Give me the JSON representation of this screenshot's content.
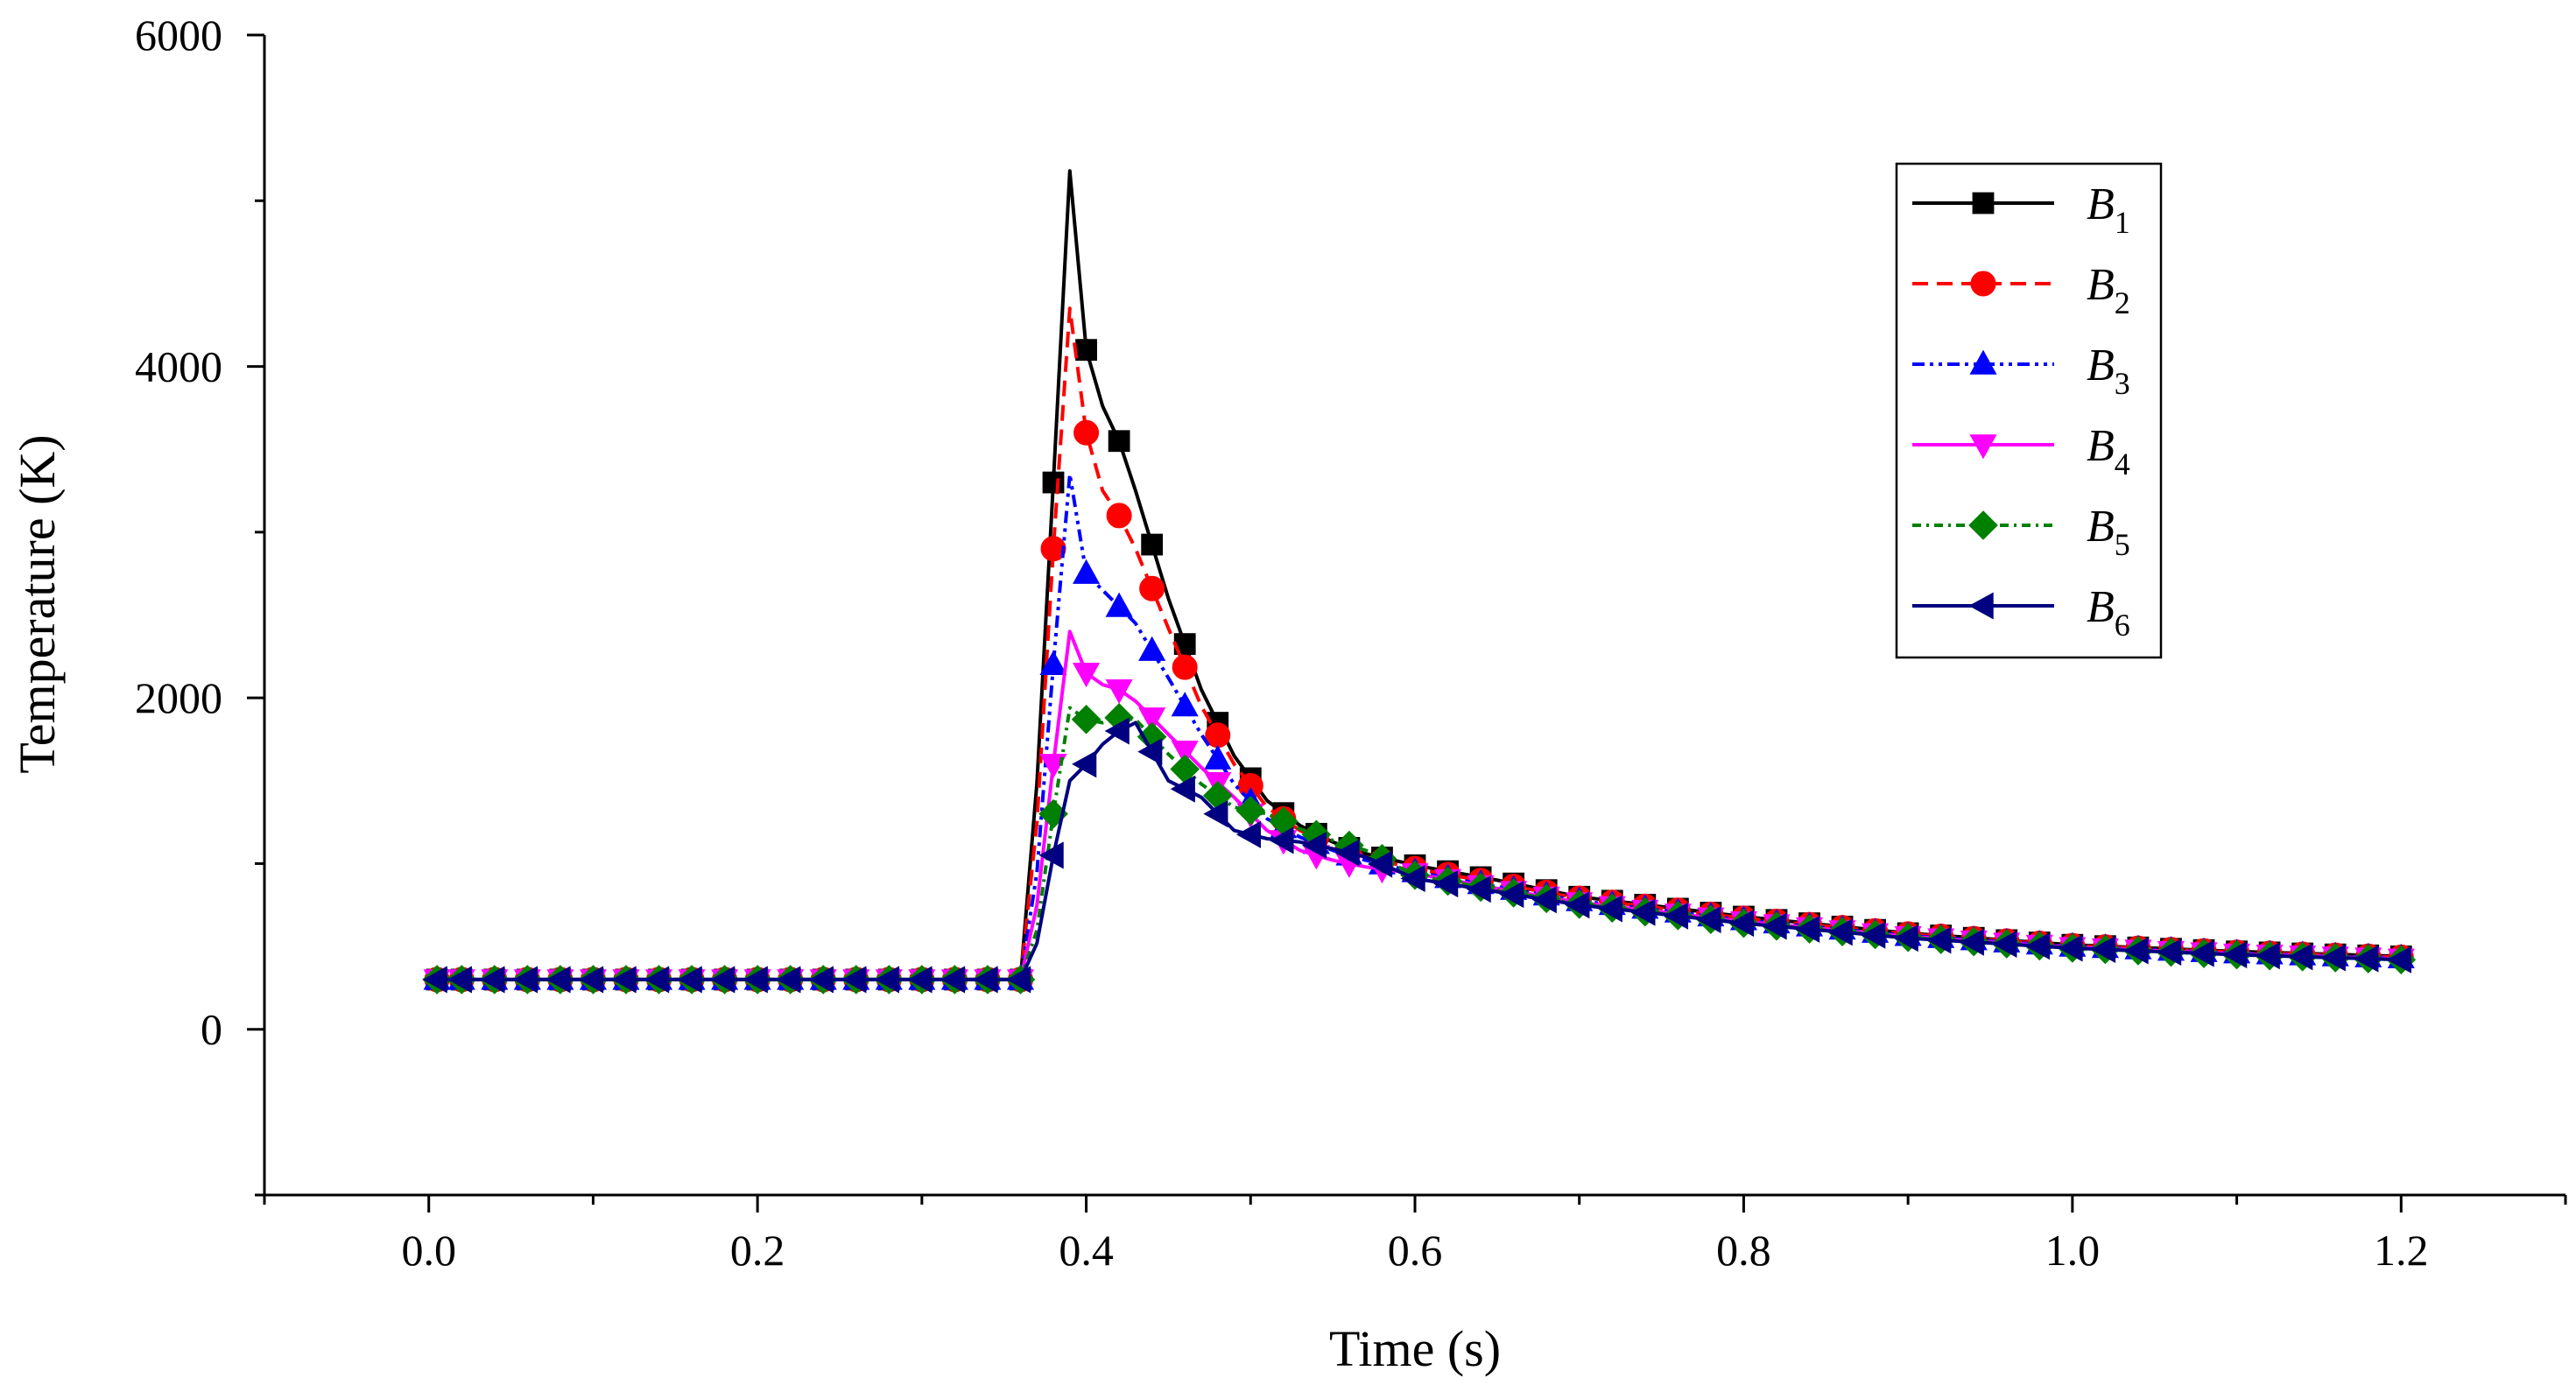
{
  "chart_data": {
    "type": "line",
    "title": "",
    "xlabel": "Time (s)",
    "ylabel": "Temperature (K)",
    "xlim": [
      -0.1,
      1.3
    ],
    "ylim": [
      -1000,
      6000
    ],
    "xticks": [
      "0.0",
      "0.2",
      "0.4",
      "0.6",
      "0.8",
      "1.0",
      "1.2"
    ],
    "yticks": [
      "0",
      "2000",
      "4000",
      "6000"
    ],
    "legend_position": "top-right",
    "series": [
      {
        "name": "B1",
        "base": "B",
        "sub": "1",
        "color": "#000000",
        "dash": "none",
        "marker": "square",
        "points": [
          [
            0.0,
            300
          ],
          [
            0.36,
            300
          ],
          [
            0.37,
            1490
          ],
          [
            0.38,
            3300
          ],
          [
            0.39,
            5180
          ],
          [
            0.4,
            4100
          ],
          [
            0.41,
            3760
          ],
          [
            0.42,
            3550
          ],
          [
            0.43,
            3250
          ],
          [
            0.45,
            2600
          ],
          [
            0.47,
            2050
          ],
          [
            0.49,
            1650
          ],
          [
            0.51,
            1380
          ],
          [
            0.53,
            1230
          ],
          [
            0.55,
            1130
          ],
          [
            0.57,
            1060
          ],
          [
            0.6,
            990
          ],
          [
            0.65,
            900
          ],
          [
            0.7,
            800
          ],
          [
            0.8,
            680
          ],
          [
            0.9,
            580
          ],
          [
            1.0,
            510
          ],
          [
            1.1,
            470
          ],
          [
            1.2,
            440
          ]
        ]
      },
      {
        "name": "B2",
        "base": "B",
        "sub": "2",
        "color": "#ff0000",
        "dash": "18,10",
        "marker": "circle",
        "points": [
          [
            0.0,
            300
          ],
          [
            0.36,
            300
          ],
          [
            0.37,
            1250
          ],
          [
            0.38,
            2900
          ],
          [
            0.39,
            4350
          ],
          [
            0.4,
            3600
          ],
          [
            0.41,
            3250
          ],
          [
            0.42,
            3100
          ],
          [
            0.43,
            2900
          ],
          [
            0.45,
            2420
          ],
          [
            0.47,
            1950
          ],
          [
            0.49,
            1600
          ],
          [
            0.51,
            1340
          ],
          [
            0.53,
            1200
          ],
          [
            0.55,
            1110
          ],
          [
            0.57,
            1040
          ],
          [
            0.6,
            970
          ],
          [
            0.65,
            880
          ],
          [
            0.7,
            790
          ],
          [
            0.8,
            670
          ],
          [
            0.9,
            575
          ],
          [
            1.0,
            505
          ],
          [
            1.1,
            465
          ],
          [
            1.2,
            435
          ]
        ]
      },
      {
        "name": "B3",
        "base": "B",
        "sub": "3",
        "color": "#0000ff",
        "dash": "14,6,4,6,4,6",
        "marker": "triangle-up",
        "points": [
          [
            0.0,
            300
          ],
          [
            0.36,
            300
          ],
          [
            0.37,
            950
          ],
          [
            0.38,
            2200
          ],
          [
            0.39,
            3350
          ],
          [
            0.4,
            2750
          ],
          [
            0.41,
            2650
          ],
          [
            0.42,
            2550
          ],
          [
            0.43,
            2450
          ],
          [
            0.45,
            2120
          ],
          [
            0.47,
            1780
          ],
          [
            0.49,
            1480
          ],
          [
            0.51,
            1270
          ],
          [
            0.53,
            1160
          ],
          [
            0.55,
            1080
          ],
          [
            0.57,
            1020
          ],
          [
            0.6,
            950
          ],
          [
            0.65,
            860
          ],
          [
            0.7,
            775
          ],
          [
            0.8,
            660
          ],
          [
            0.9,
            565
          ],
          [
            1.0,
            500
          ],
          [
            1.1,
            460
          ],
          [
            1.2,
            430
          ]
        ]
      },
      {
        "name": "B4",
        "base": "B",
        "sub": "4",
        "color": "#ff00ff",
        "dash": "none",
        "marker": "triangle-down",
        "points": [
          [
            0.0,
            300
          ],
          [
            0.36,
            300
          ],
          [
            0.37,
            750
          ],
          [
            0.38,
            1600
          ],
          [
            0.39,
            2400
          ],
          [
            0.4,
            2150
          ],
          [
            0.41,
            2080
          ],
          [
            0.42,
            2050
          ],
          [
            0.43,
            1980
          ],
          [
            0.45,
            1780
          ],
          [
            0.47,
            1580
          ],
          [
            0.49,
            1400
          ],
          [
            0.51,
            1200
          ],
          [
            0.53,
            1080
          ],
          [
            0.55,
            1020
          ],
          [
            0.57,
            980
          ],
          [
            0.6,
            940
          ],
          [
            0.65,
            850
          ],
          [
            0.7,
            765
          ],
          [
            0.8,
            650
          ],
          [
            0.9,
            560
          ],
          [
            1.0,
            495
          ],
          [
            1.1,
            455
          ],
          [
            1.2,
            425
          ]
        ]
      },
      {
        "name": "B5",
        "base": "B",
        "sub": "5",
        "color": "#008000",
        "dash": "10,6,3,6",
        "marker": "diamond",
        "points": [
          [
            0.0,
            300
          ],
          [
            0.36,
            300
          ],
          [
            0.37,
            600
          ],
          [
            0.38,
            1300
          ],
          [
            0.39,
            1940
          ],
          [
            0.4,
            1870
          ],
          [
            0.41,
            1850
          ],
          [
            0.42,
            1880
          ],
          [
            0.43,
            1870
          ],
          [
            0.45,
            1660
          ],
          [
            0.47,
            1480
          ],
          [
            0.49,
            1340
          ],
          [
            0.51,
            1300
          ],
          [
            0.53,
            1210
          ],
          [
            0.55,
            1140
          ],
          [
            0.57,
            1080
          ],
          [
            0.6,
            930
          ],
          [
            0.65,
            840
          ],
          [
            0.7,
            755
          ],
          [
            0.8,
            640
          ],
          [
            0.9,
            555
          ],
          [
            1.0,
            490
          ],
          [
            1.1,
            450
          ],
          [
            1.2,
            420
          ]
        ]
      },
      {
        "name": "B6",
        "base": "B",
        "sub": "6",
        "color": "#000080",
        "dash": "none",
        "marker": "triangle-left",
        "points": [
          [
            0.0,
            300
          ],
          [
            0.36,
            300
          ],
          [
            0.37,
            520
          ],
          [
            0.38,
            1050
          ],
          [
            0.39,
            1500
          ],
          [
            0.4,
            1600
          ],
          [
            0.41,
            1720
          ],
          [
            0.42,
            1800
          ],
          [
            0.43,
            1850
          ],
          [
            0.45,
            1500
          ],
          [
            0.47,
            1400
          ],
          [
            0.49,
            1200
          ],
          [
            0.51,
            1150
          ],
          [
            0.53,
            1130
          ],
          [
            0.55,
            1090
          ],
          [
            0.57,
            1040
          ],
          [
            0.6,
            910
          ],
          [
            0.65,
            830
          ],
          [
            0.7,
            750
          ],
          [
            0.8,
            640
          ],
          [
            0.9,
            550
          ],
          [
            1.0,
            490
          ],
          [
            1.1,
            450
          ],
          [
            1.2,
            420
          ]
        ]
      }
    ]
  }
}
